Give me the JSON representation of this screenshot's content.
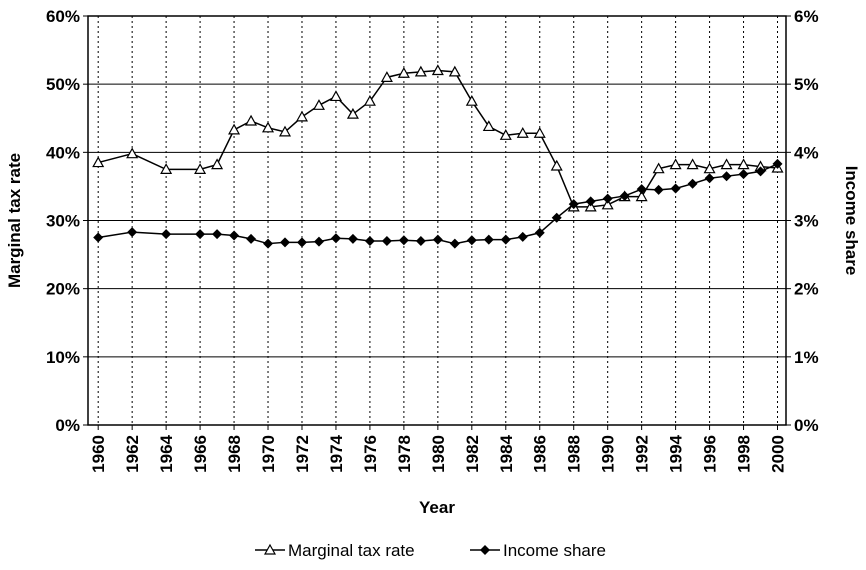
{
  "chart_data": {
    "type": "line",
    "x_label": "Year",
    "y_label": "Marginal tax rate",
    "y2_label": "Income share",
    "x": [
      1960,
      1962,
      1964,
      1966,
      1967,
      1968,
      1969,
      1970,
      1971,
      1972,
      1973,
      1974,
      1975,
      1976,
      1977,
      1978,
      1979,
      1980,
      1981,
      1982,
      1983,
      1984,
      1985,
      1986,
      1987,
      1988,
      1989,
      1990,
      1991,
      1992,
      1993,
      1994,
      1995,
      1996,
      1997,
      1998,
      1999,
      2000
    ],
    "series": [
      {
        "name": "Marginal tax rate",
        "color": "#000000",
        "marker": "triangle",
        "values": [
          38.5,
          39.8,
          37.5,
          37.5,
          38.2,
          43.3,
          44.6,
          43.6,
          43.0,
          45.2,
          46.9,
          48.2,
          45.6,
          47.5,
          51.0,
          51.6,
          51.8,
          52.0,
          51.8,
          47.5,
          43.8,
          42.5,
          42.8,
          42.8,
          38.0,
          32.0,
          32.0,
          32.3,
          33.5,
          33.5,
          37.6,
          38.2,
          38.2,
          37.6,
          38.2,
          38.2,
          37.9,
          37.7
        ]
      },
      {
        "name": "Income share",
        "color": "#000000",
        "marker": "diamond",
        "axis": "y2",
        "values": [
          2.75,
          2.83,
          2.8,
          2.8,
          2.8,
          2.78,
          2.73,
          2.66,
          2.68,
          2.68,
          2.69,
          2.74,
          2.73,
          2.7,
          2.7,
          2.71,
          2.7,
          2.72,
          2.66,
          2.71,
          2.72,
          2.72,
          2.76,
          2.82,
          3.04,
          3.24,
          3.28,
          3.32,
          3.36,
          3.46,
          3.45,
          3.47,
          3.54,
          3.62,
          3.65,
          3.68,
          3.72,
          3.83
        ]
      }
    ],
    "xlim": [
      1959.4,
      2000.5
    ],
    "xticks": [
      1960,
      1962,
      1964,
      1966,
      1968,
      1970,
      1972,
      1974,
      1976,
      1978,
      1980,
      1982,
      1984,
      1986,
      1988,
      1990,
      1992,
      1994,
      1996,
      1998,
      2000
    ],
    "ylim": [
      0,
      60
    ],
    "yticks": [
      {
        "value": 0,
        "label": "0%"
      },
      {
        "value": 10,
        "label": "10%"
      },
      {
        "value": 20,
        "label": "20%"
      },
      {
        "value": 30,
        "label": "30%"
      },
      {
        "value": 40,
        "label": "40%"
      },
      {
        "value": 50,
        "label": "50%"
      },
      {
        "value": 60,
        "label": "60%"
      }
    ],
    "y2lim": [
      0,
      6
    ],
    "y2ticks": [
      {
        "value": 0,
        "label": "0%"
      },
      {
        "value": 1,
        "label": "1%"
      },
      {
        "value": 2,
        "label": "2%"
      },
      {
        "value": 3,
        "label": "3%"
      },
      {
        "value": 4,
        "label": "4%"
      },
      {
        "value": 5,
        "label": "5%"
      },
      {
        "value": 6,
        "label": "6%"
      }
    ],
    "grid": true,
    "legend": "bottom"
  }
}
